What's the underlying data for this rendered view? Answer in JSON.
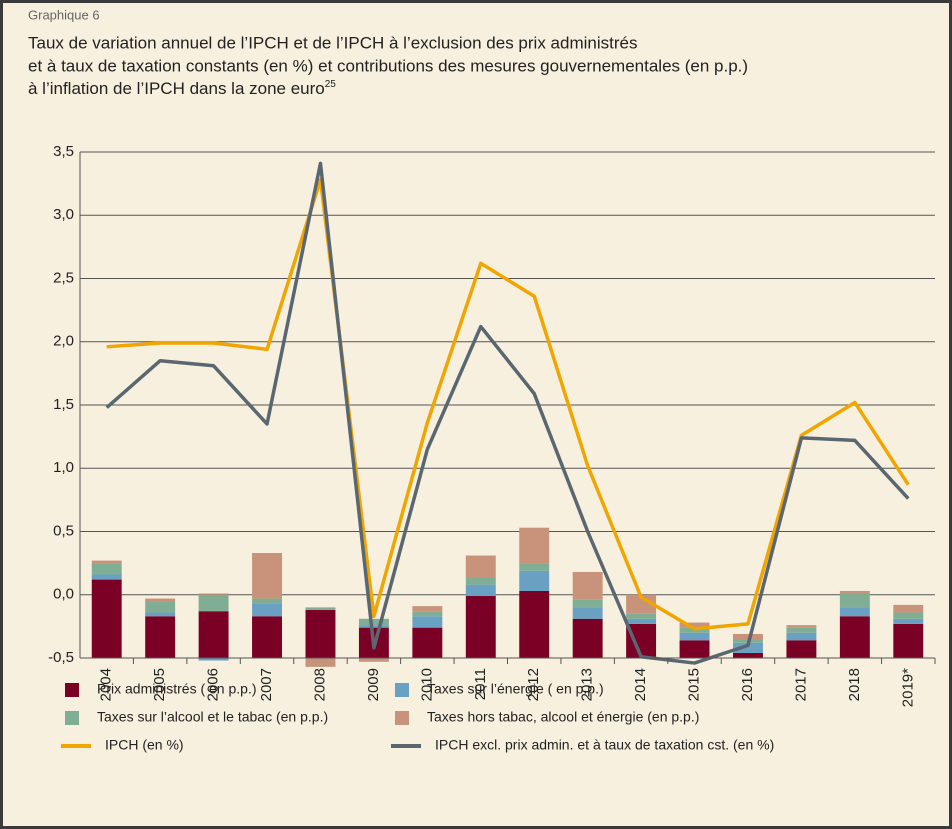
{
  "chart_data": {
    "type": "bar",
    "kicker": "Graphique 6",
    "title_lines": [
      "Taux de variation annuel de l’IPCH et de l’IPCH à l’exclusion des prix administrés",
      "et à taux de taxation constants (en %) et contributions des mesures gouvernementales (en p.p.)",
      "à l’inflation de l’IPCH dans la zone euro"
    ],
    "footnote_ref": "25",
    "categories": [
      "2004",
      "2005",
      "2006",
      "2007",
      "2008",
      "2009",
      "2010",
      "2011",
      "2012",
      "2013",
      "2014",
      "2015",
      "2016",
      "2017",
      "2018",
      "2019*"
    ],
    "ylim": [
      -0.5,
      3.5
    ],
    "yticks": [
      {
        "value": -0.5,
        "label": "-0,5"
      },
      {
        "value": 0,
        "label": "0,0"
      },
      {
        "value": 0.5,
        "label": "0,5"
      },
      {
        "value": 1,
        "label": "1,0"
      },
      {
        "value": 1.5,
        "label": "1,5"
      },
      {
        "value": 2,
        "label": "2,0"
      },
      {
        "value": 2.5,
        "label": "2,5"
      },
      {
        "value": 3,
        "label": "3,0"
      },
      {
        "value": 3.5,
        "label": "3,5"
      }
    ],
    "grid": true,
    "series": [
      {
        "name": "Prix administrés ( en p.p.)",
        "type": "bar",
        "color": "#7a0026",
        "values": [
          0.12,
          -0.17,
          -0.13,
          -0.17,
          -0.12,
          -0.26,
          -0.26,
          -0.01,
          0.03,
          -0.19,
          -0.23,
          -0.36,
          -0.46,
          -0.36,
          -0.17,
          -0.23
        ]
      },
      {
        "name": "Taxes sur l’énergie ( en p.p.)",
        "type": "bar",
        "color": "#6aa0c2",
        "values": [
          0.04,
          0.03,
          -0.02,
          0.1,
          0.0,
          0.02,
          0.09,
          0.09,
          0.16,
          0.09,
          0.04,
          0.06,
          0.08,
          0.06,
          0.07,
          0.04
        ]
      },
      {
        "name": "Taxes sur l’alcool et le tabac (en p.p.)",
        "type": "bar",
        "color": "#7fae94",
        "values": [
          0.09,
          0.09,
          0.13,
          0.04,
          0.02,
          0.05,
          0.04,
          0.06,
          0.06,
          0.06,
          0.04,
          0.04,
          0.03,
          0.04,
          0.11,
          0.05
        ]
      },
      {
        "name": "Taxes hors tabac, alcool et énergie (en p.p.)",
        "type": "bar",
        "color": "#c8937a",
        "values": [
          0.02,
          0.02,
          0.01,
          0.36,
          -0.07,
          -0.03,
          0.04,
          0.17,
          0.28,
          0.22,
          0.15,
          0.04,
          0.04,
          0.02,
          0.02,
          0.06
        ]
      },
      {
        "name": "IPCH (en %)",
        "type": "line",
        "color": "#f0a500",
        "values": [
          1.96,
          1.99,
          1.99,
          1.94,
          3.28,
          -0.17,
          1.36,
          2.62,
          2.36,
          1.02,
          -0.02,
          -0.27,
          -0.23,
          1.26,
          1.52,
          0.87
        ]
      },
      {
        "name": "IPCH excl. prix admin. et à taux de taxation cst. (en %)",
        "type": "line",
        "color": "#5b6770",
        "values": [
          1.48,
          1.85,
          1.81,
          1.35,
          3.41,
          -0.42,
          1.15,
          2.12,
          1.59,
          0.5,
          -0.49,
          -0.54,
          -0.4,
          1.24,
          1.22,
          0.76
        ]
      }
    ]
  }
}
